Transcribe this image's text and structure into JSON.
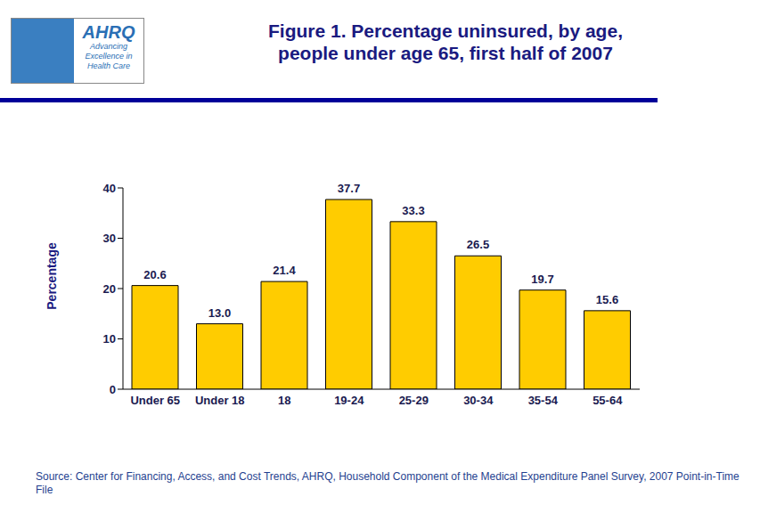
{
  "chart_data": {
    "type": "bar",
    "title": [
      "Figure 1. Percentage uninsured, by age,",
      "people under age 65, first half of 2007"
    ],
    "categories": [
      "Under 65",
      "Under 18",
      "18",
      "19-24",
      "25-29",
      "30-34",
      "35-54",
      "55-64"
    ],
    "values": [
      20.6,
      13.0,
      21.4,
      37.7,
      33.3,
      26.5,
      19.7,
      15.6
    ],
    "value_labels": [
      "20.6",
      "13.0",
      "21.4",
      "37.7",
      "33.3",
      "26.5",
      "19.7",
      "15.6"
    ],
    "data_labels": true,
    "color": "#ffcc00",
    "ylim": [
      0,
      40
    ],
    "yticks": [
      0,
      10,
      20,
      30,
      40
    ],
    "grid": false,
    "y_label": "Percentage",
    "source": "Source: Center for Financing, Access, and Cost Trends, AHRQ, Household Component of the Medical Expenditure Panel Survey, 2007 Point-in-Time File",
    "logo": {
      "name": "AHRQ",
      "tagline": "Advancing Excellence in Health Care"
    }
  }
}
